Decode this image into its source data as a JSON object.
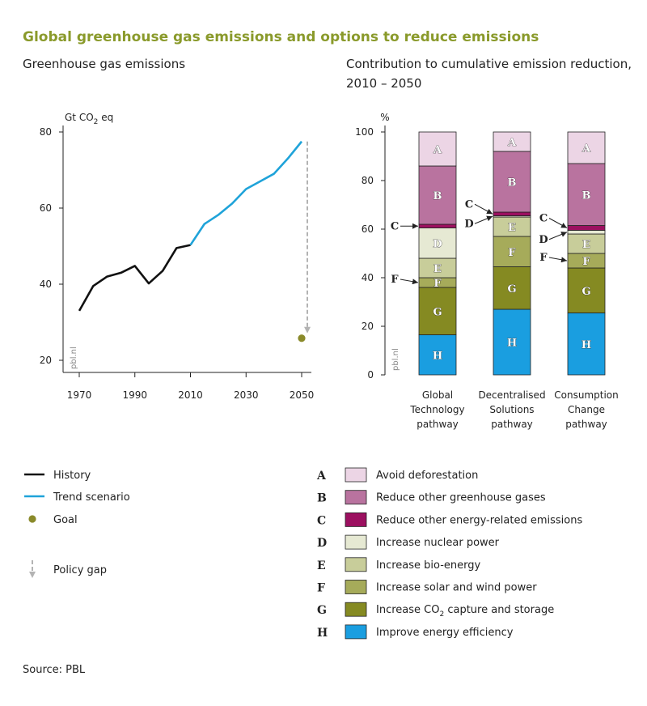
{
  "header": {
    "title": "Global greenhouse gas emissions and options to reduce emissions",
    "left_subtitle": "Greenhouse gas emissions",
    "right_subtitle_line1": "Contribution to cumulative emission reduction,",
    "right_subtitle_line2": "2010 – 2050"
  },
  "source": "Source: PBL",
  "watermark": "pbl.nl",
  "colors": {
    "history": "#111111",
    "trend": "#1fa3d9",
    "goal": "#8a8a2a",
    "policy_gap": "#b3b3b3",
    "title": "#8a9a2b"
  },
  "chart_data": [
    {
      "type": "line",
      "ylabel": "Gt CO₂ eq",
      "xlim": [
        1970,
        2050
      ],
      "ylim": [
        20,
        80
      ],
      "xticks": [
        1970,
        1990,
        2010,
        2030,
        2050
      ],
      "yticks": [
        20,
        40,
        60,
        80
      ],
      "grid": false,
      "series": [
        {
          "name": "History",
          "x": [
            1970,
            1975,
            1980,
            1985,
            1990,
            1995,
            2000,
            2005,
            2010
          ],
          "y": [
            33,
            39.5,
            42,
            43,
            44.8,
            40.2,
            43.5,
            49.5,
            50.3
          ]
        },
        {
          "name": "Trend scenario",
          "x": [
            2010,
            2015,
            2020,
            2025,
            2030,
            2035,
            2040,
            2045,
            2050
          ],
          "y": [
            50.3,
            55.8,
            58.2,
            61.2,
            65,
            67,
            69,
            73,
            77.5
          ]
        }
      ],
      "goal": {
        "name": "Goal",
        "x": 2050,
        "y": 25.8
      },
      "policy_gap": {
        "name": "Policy gap",
        "x": 2050,
        "from": 77.5,
        "to": 25.8
      }
    },
    {
      "type": "bar",
      "stacked": true,
      "ylabel": "%",
      "ylim": [
        0,
        100
      ],
      "yticks": [
        0,
        20,
        40,
        60,
        80,
        100
      ],
      "grid": false,
      "categories": [
        "Global Technology pathway",
        "Decentralised Solutions pathway",
        "Consumption Change pathway"
      ],
      "category_lines": [
        [
          "Global",
          "Technology",
          "pathway"
        ],
        [
          "Decentralised",
          "Solutions",
          "pathway"
        ],
        [
          "Consumption",
          "Change",
          "pathway"
        ]
      ],
      "series": [
        {
          "key": "H",
          "name": "Improve energy efficiency",
          "color": "#1a9ee0",
          "values": [
            16.5,
            27,
            25.5
          ]
        },
        {
          "key": "G",
          "name": "Increase CO₂ capture and storage",
          "color": "#858a22",
          "values": [
            19.5,
            17.5,
            18.5
          ]
        },
        {
          "key": "F",
          "name": "Increase solar and wind power",
          "color": "#a6ab5a",
          "values": [
            4,
            12.5,
            6
          ]
        },
        {
          "key": "E",
          "name": "Increase bio-energy",
          "color": "#c8cd9a",
          "values": [
            8,
            8,
            8
          ]
        },
        {
          "key": "D",
          "name": "Increase nuclear power",
          "color": "#e6e9d3",
          "values": [
            12.5,
            0.5,
            1.5
          ]
        },
        {
          "key": "C",
          "name": "Reduce other energy-related emissions",
          "color": "#9c1060",
          "values": [
            1.5,
            1.5,
            2
          ]
        },
        {
          "key": "B",
          "name": "Reduce other greenhouse gases",
          "color": "#b9739f",
          "values": [
            24,
            25,
            25.5
          ]
        },
        {
          "key": "A",
          "name": "Avoid deforestation",
          "color": "#ecd5e5",
          "values": [
            14,
            8,
            13
          ]
        }
      ],
      "callouts": [
        {
          "bar": 0,
          "key": "C"
        },
        {
          "bar": 0,
          "key": "F"
        },
        {
          "bar": 1,
          "key": "C"
        },
        {
          "bar": 1,
          "key": "D"
        },
        {
          "bar": 2,
          "key": "C"
        },
        {
          "bar": 2,
          "key": "D"
        },
        {
          "bar": 2,
          "key": "F"
        }
      ]
    }
  ]
}
